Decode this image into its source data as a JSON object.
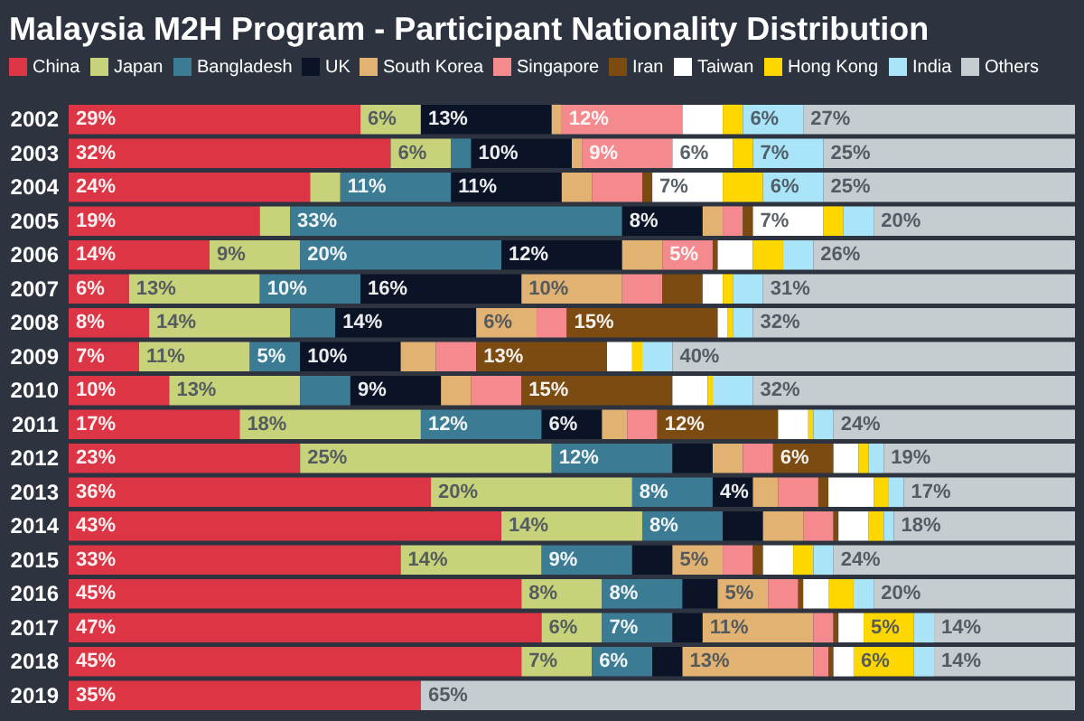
{
  "chart_data": {
    "type": "bar",
    "title": "Malaysia M2H Program - Participant Nationality Distribution",
    "orientation": "horizontal",
    "stacked": true,
    "legend": "top",
    "categories": [
      "2002",
      "2003",
      "2004",
      "2005",
      "2006",
      "2007",
      "2008",
      "2009",
      "2010",
      "2011",
      "2012",
      "2013",
      "2014",
      "2015",
      "2016",
      "2017",
      "2018",
      "2019"
    ],
    "series": [
      {
        "name": "China",
        "color": "#dc3545",
        "values": [
          29,
          32,
          24,
          19,
          14,
          6,
          8,
          7,
          10,
          17,
          23,
          36,
          43,
          33,
          45,
          47,
          45,
          35
        ],
        "value_labels": [
          "29%",
          "32%",
          "24%",
          "19%",
          "14%",
          "6%",
          "8%",
          "7%",
          "10%",
          "17%",
          "23%",
          "36%",
          "43%",
          "33%",
          "45%",
          "47%",
          "45%",
          "35%"
        ]
      },
      {
        "name": "Japan",
        "color": "#c8d27a",
        "values": [
          6,
          6,
          3,
          3,
          9,
          13,
          14,
          11,
          13,
          18,
          25,
          20,
          14,
          14,
          8,
          6,
          7,
          null
        ],
        "value_labels": [
          "6%",
          "6%",
          null,
          null,
          "9%",
          "13%",
          "14%",
          "11%",
          "13%",
          "18%",
          "25%",
          "20%",
          "14%",
          "14%",
          "8%",
          "6%",
          "7%",
          null
        ]
      },
      {
        "name": "Bangladesh",
        "color": "#3b7b93",
        "values": [
          null,
          2,
          11,
          33,
          20,
          10,
          4.5,
          5,
          5,
          12,
          12,
          8,
          8,
          9,
          8,
          7,
          6,
          null
        ],
        "value_labels": [
          null,
          null,
          "11%",
          "33%",
          "20%",
          "10%",
          null,
          "5%",
          null,
          "12%",
          "12%",
          "8%",
          "8%",
          "9%",
          "8%",
          "7%",
          "6%",
          null
        ]
      },
      {
        "name": "UK",
        "color": "#0b1426",
        "values": [
          13,
          10,
          11,
          8,
          12,
          16,
          14,
          10,
          9,
          6,
          4,
          4,
          4,
          4,
          3.5,
          3,
          3,
          null
        ],
        "value_labels": [
          "13%",
          "10%",
          "11%",
          "8%",
          "12%",
          "16%",
          "14%",
          "10%",
          "9%",
          "6%",
          null,
          "4%",
          null,
          null,
          null,
          null,
          null,
          null
        ]
      },
      {
        "name": "South Korea",
        "color": "#e2b273",
        "values": [
          1,
          1,
          3,
          2,
          4,
          10,
          6,
          3.5,
          3,
          2.5,
          3,
          2.5,
          4,
          5,
          5,
          11,
          13,
          null
        ],
        "value_labels": [
          null,
          null,
          null,
          null,
          null,
          "10%",
          "6%",
          null,
          null,
          null,
          null,
          null,
          null,
          "5%",
          "5%",
          "11%",
          "13%",
          null
        ]
      },
      {
        "name": "Singapore",
        "color": "#f58a8e",
        "values": [
          12,
          9,
          5,
          2,
          5,
          4,
          3,
          4,
          5,
          3,
          3,
          4,
          3,
          3,
          3,
          2,
          1.5,
          null
        ],
        "value_labels": [
          "12%",
          "9%",
          null,
          null,
          "5%",
          null,
          null,
          null,
          null,
          null,
          null,
          null,
          null,
          null,
          null,
          null,
          null,
          null
        ]
      },
      {
        "name": "Iran",
        "color": "#7b4b12",
        "values": [
          null,
          null,
          1,
          1,
          0.5,
          4,
          15,
          13,
          15,
          12,
          6,
          1,
          0.5,
          1,
          0.5,
          0.5,
          0.5,
          null
        ],
        "value_labels": [
          null,
          null,
          null,
          null,
          null,
          null,
          "15%",
          "13%",
          "15%",
          "12%",
          "6%",
          null,
          null,
          null,
          null,
          null,
          null,
          null
        ]
      },
      {
        "name": "Taiwan",
        "color": "#ffffff",
        "values": [
          4,
          6,
          7,
          7,
          3.5,
          2,
          1,
          2.5,
          3.5,
          3,
          2.5,
          4.5,
          3,
          3,
          2.5,
          2.5,
          2,
          null
        ],
        "value_labels": [
          null,
          "6%",
          "7%",
          "7%",
          null,
          null,
          null,
          null,
          null,
          null,
          null,
          null,
          null,
          null,
          null,
          null,
          null,
          null
        ]
      },
      {
        "name": "Hong Kong",
        "color": "#ffd700",
        "values": [
          2,
          2,
          4,
          2,
          3,
          1,
          0.5,
          1,
          0.5,
          0.5,
          1,
          1.5,
          1.5,
          2,
          2.5,
          5,
          6,
          null
        ],
        "value_labels": [
          null,
          null,
          null,
          null,
          null,
          null,
          null,
          null,
          null,
          null,
          null,
          null,
          null,
          null,
          null,
          "5%",
          "6%",
          null
        ]
      },
      {
        "name": "India",
        "color": "#a9e4f8",
        "values": [
          6,
          7,
          6,
          3,
          3,
          3,
          2,
          3,
          4,
          2,
          1.5,
          1.5,
          1,
          2,
          2,
          2,
          2,
          null
        ],
        "value_labels": [
          "6%",
          "7%",
          "6%",
          null,
          null,
          null,
          null,
          null,
          null,
          null,
          null,
          null,
          null,
          null,
          null,
          null,
          null,
          null
        ]
      },
      {
        "name": "Others",
        "color": "#c5cdd1",
        "values": [
          27,
          25,
          25,
          20,
          26,
          31,
          32,
          40,
          32,
          24,
          19,
          17,
          18,
          24,
          20,
          14,
          14,
          65
        ],
        "value_labels": [
          "27%",
          "25%",
          "25%",
          "20%",
          "26%",
          "31%",
          "32%",
          "40%",
          "32%",
          "24%",
          "19%",
          "17%",
          "18%",
          "24%",
          "20%",
          "14%",
          "14%",
          "65%"
        ]
      }
    ]
  }
}
